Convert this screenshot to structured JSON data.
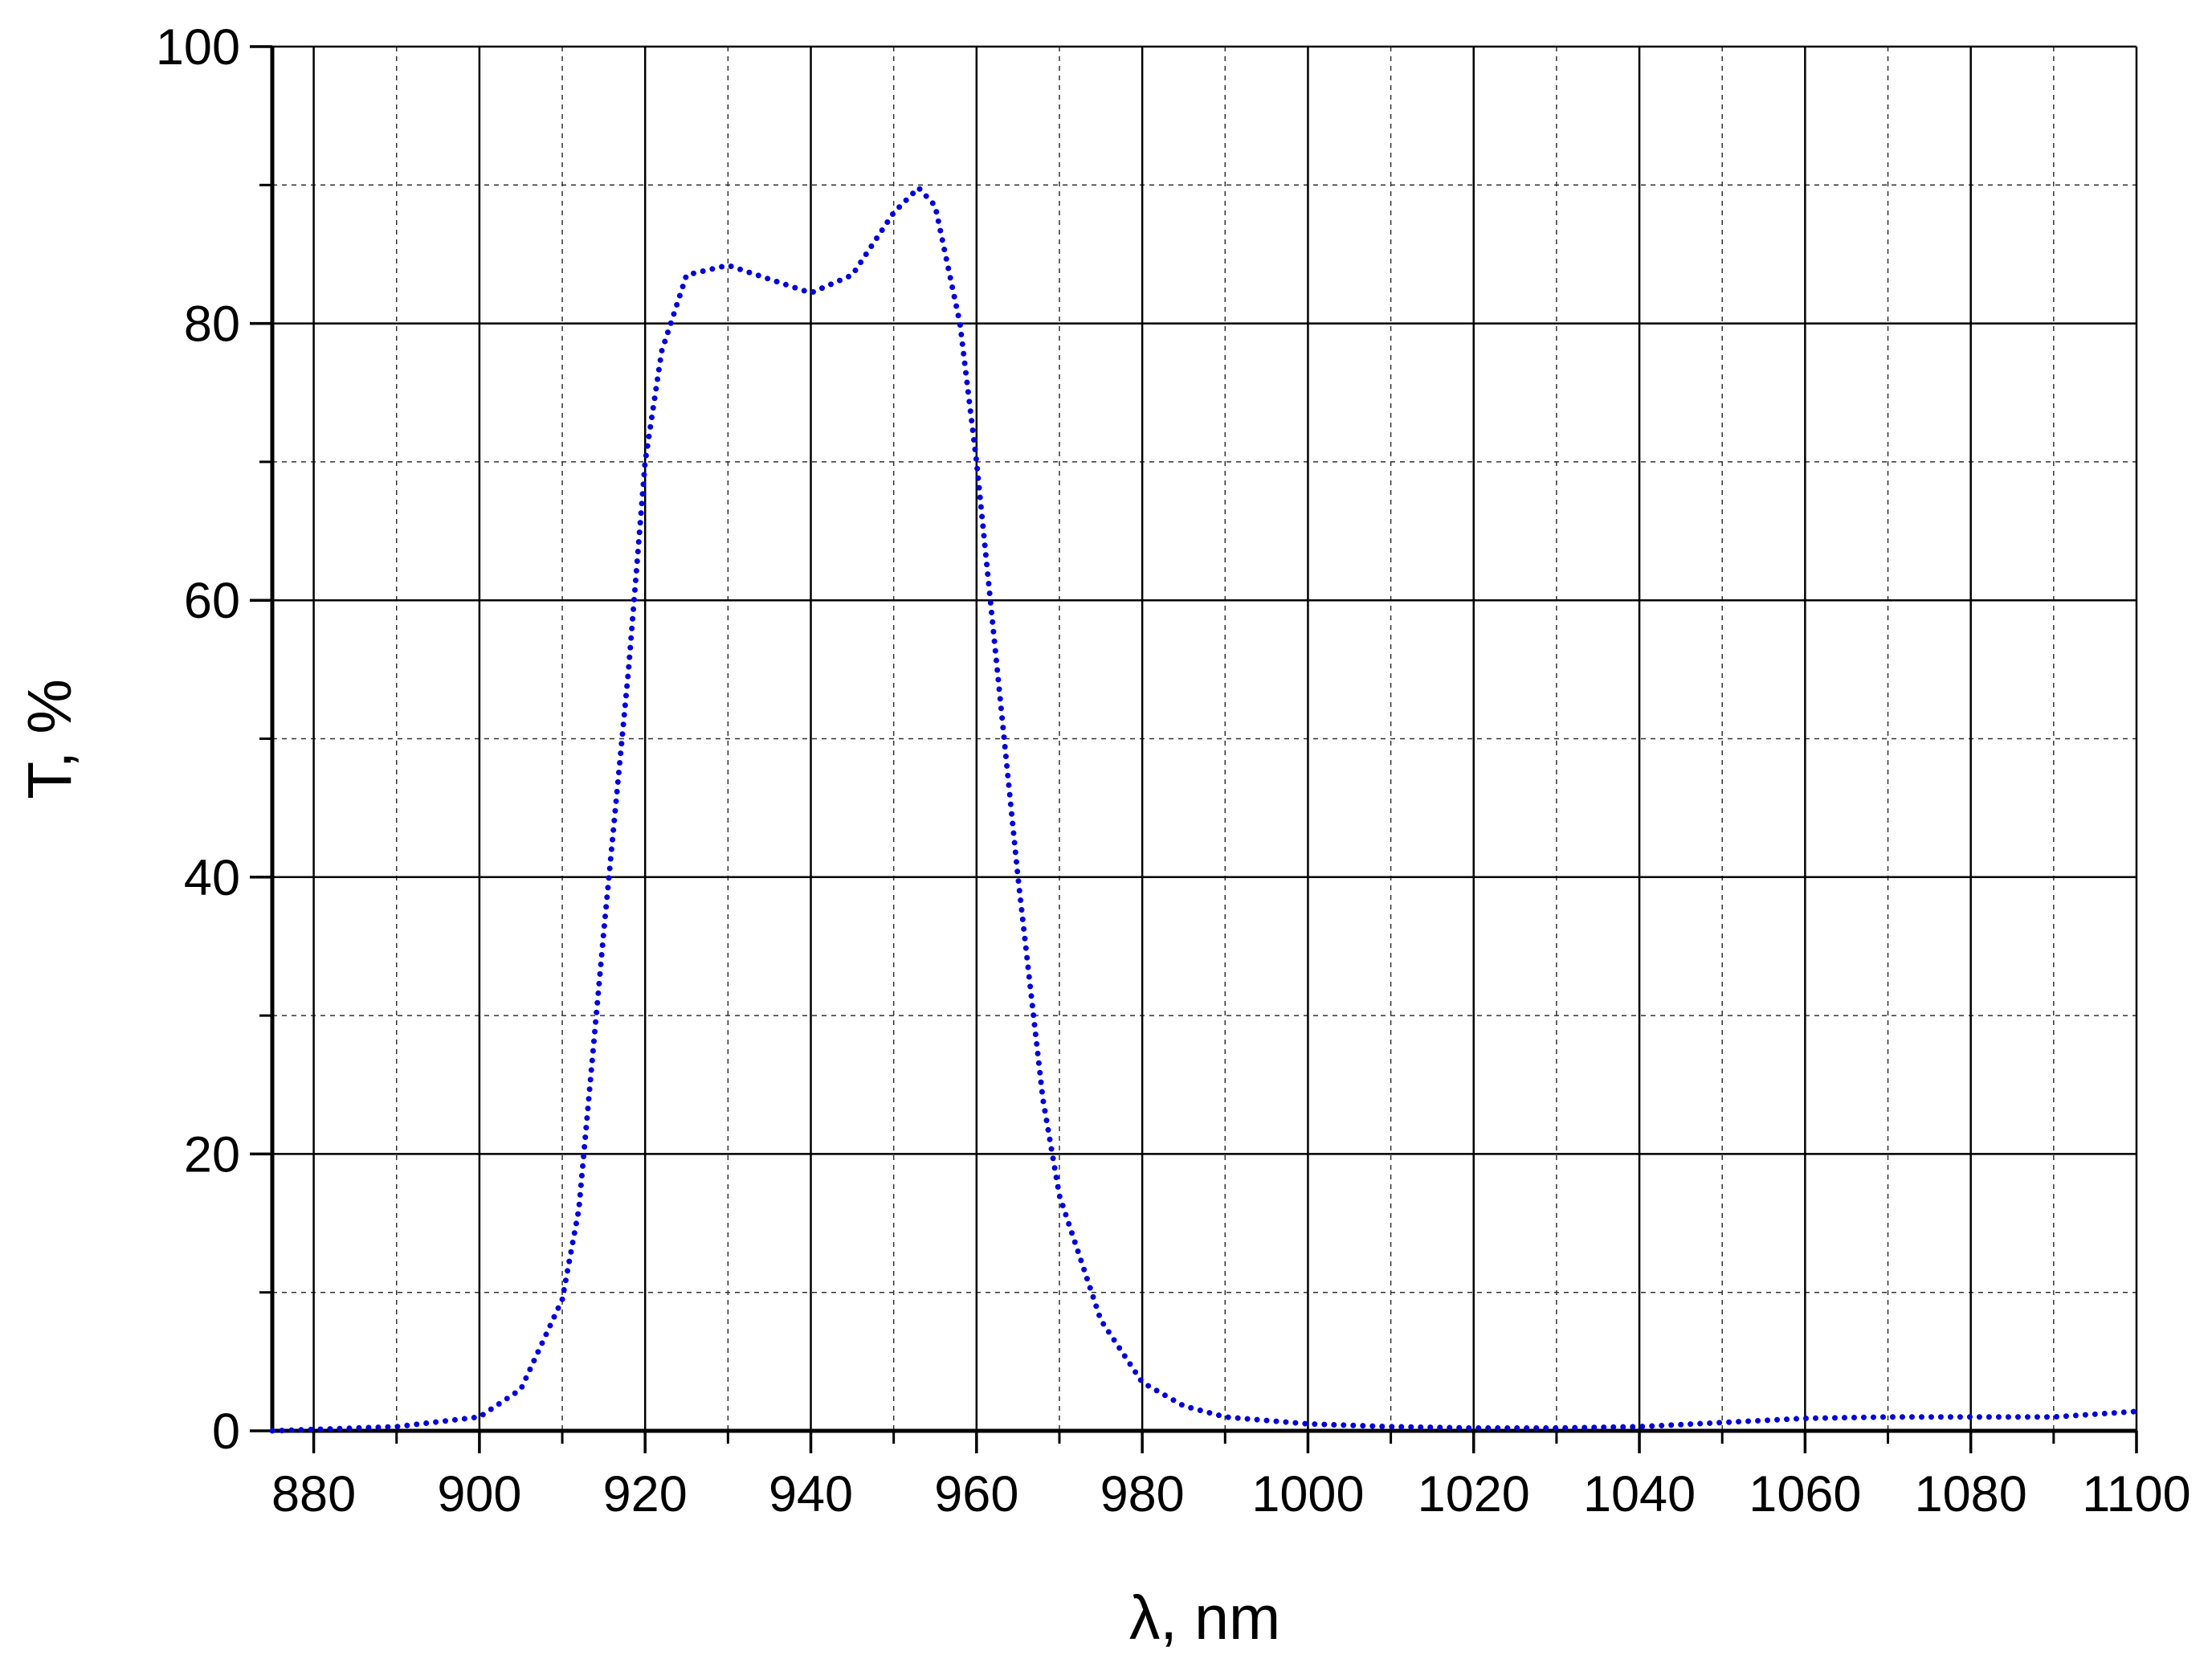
{
  "chart_data": {
    "type": "line",
    "xlabel": "λ, nm",
    "ylabel": "T, %",
    "xlim": [
      875,
      1100
    ],
    "ylim": [
      0,
      100
    ],
    "xticks": [
      880,
      900,
      920,
      940,
      960,
      980,
      1000,
      1020,
      1040,
      1060,
      1080,
      1100
    ],
    "yticks": [
      0,
      20,
      40,
      60,
      80,
      100
    ],
    "grid": true,
    "series": [
      {
        "color": "#0000dd",
        "x": [
          875,
          880,
          890,
          900,
          905,
          910,
          912,
          915,
          918,
          920,
          922,
          925,
          930,
          935,
          940,
          945,
          950,
          953,
          955,
          958,
          960,
          962,
          965,
          968,
          970,
          975,
          980,
          985,
          990,
          1000,
          1010,
          1020,
          1030,
          1040,
          1050,
          1060,
          1070,
          1080,
          1090,
          1100
        ],
        "values": [
          0,
          0.1,
          0.3,
          1,
          3,
          9.5,
          16,
          36,
          55,
          70,
          78,
          83.5,
          84.2,
          83.2,
          82.2,
          83.5,
          88,
          89.8,
          88.5,
          80,
          70,
          58,
          40,
          24,
          17,
          8,
          3.5,
          1.8,
          1,
          0.5,
          0.3,
          0.2,
          0.2,
          0.3,
          0.6,
          0.9,
          1,
          1,
          1,
          1.4
        ]
      }
    ]
  }
}
